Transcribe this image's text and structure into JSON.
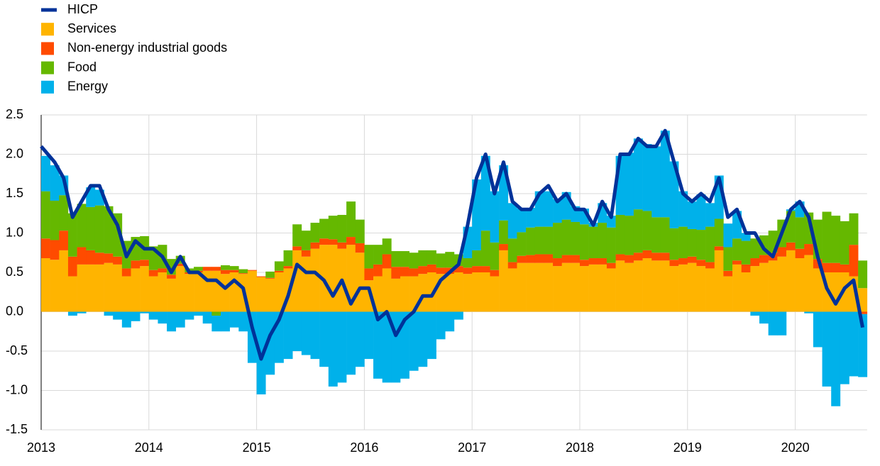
{
  "chart_data": {
    "type": "bar",
    "stacked": true,
    "categories": [
      "2013",
      null,
      null,
      null,
      null,
      null,
      null,
      null,
      null,
      null,
      null,
      null,
      "2014",
      null,
      null,
      null,
      null,
      null,
      null,
      null,
      null,
      null,
      null,
      null,
      "2015",
      null,
      null,
      null,
      null,
      null,
      null,
      null,
      null,
      null,
      null,
      null,
      "2016",
      null,
      null,
      null,
      null,
      null,
      null,
      null,
      null,
      null,
      null,
      null,
      "2017",
      null,
      null,
      null,
      null,
      null,
      null,
      null,
      null,
      null,
      null,
      null,
      "2018",
      null,
      null,
      null,
      null,
      null,
      null,
      null,
      null,
      null,
      null,
      null,
      "2019",
      null,
      null,
      null,
      null,
      null,
      null,
      null,
      null,
      null,
      null,
      null,
      "2020",
      null,
      null,
      null,
      null,
      null,
      null,
      null
    ],
    "ylim": [
      -1.5,
      2.5
    ],
    "yticks": [
      {
        "value": -1.5,
        "label": "-1.5"
      },
      {
        "value": -1,
        "label": "-1.0"
      },
      {
        "value": -0.5,
        "label": "-0.5"
      },
      {
        "value": 0,
        "label": "0.0"
      },
      {
        "value": 0.5,
        "label": "0.5"
      },
      {
        "value": 1,
        "label": "1.0"
      },
      {
        "value": 1.5,
        "label": "1.5"
      },
      {
        "value": 2,
        "label": "2.0"
      },
      {
        "value": 2.5,
        "label": "2.5"
      }
    ],
    "grid": true,
    "series": [
      {
        "name": "HICP",
        "type": "line",
        "color": "#003299",
        "values": [
          2.1,
          1.9,
          1.7,
          1.2,
          1.4,
          1.6,
          1.6,
          1.3,
          1.1,
          0.7,
          0.9,
          0.8,
          0.8,
          0.7,
          0.5,
          0.7,
          0.5,
          0.5,
          0.4,
          0.4,
          0.3,
          0.4,
          0.3,
          -0.2,
          -0.6,
          -0.3,
          -0.1,
          0.2,
          0.6,
          0.5,
          0.5,
          0.4,
          0.2,
          0.4,
          0.1,
          0.3,
          0.3,
          -0.1,
          0.0,
          -0.3,
          -0.1,
          0.0,
          0.2,
          0.2,
          0.4,
          0.5,
          0.6,
          1.1,
          1.7,
          2.0,
          1.5,
          1.9,
          1.4,
          1.3,
          1.3,
          1.5,
          1.6,
          1.4,
          1.5,
          1.3,
          1.3,
          1.1,
          1.4,
          1.2,
          2.0,
          2.0,
          2.2,
          2.1,
          2.1,
          2.3,
          1.9,
          1.5,
          1.4,
          1.5,
          1.4,
          1.7,
          1.2,
          1.3,
          1.0,
          1.0,
          0.8,
          0.7,
          1.0,
          1.3,
          1.4,
          1.2,
          0.7,
          0.3,
          0.1,
          0.3,
          0.4,
          -0.2
        ]
      },
      {
        "name": "Services",
        "type": "bar",
        "color": "#ffb400",
        "values": [
          0.68,
          0.66,
          0.78,
          0.45,
          0.6,
          0.6,
          0.6,
          0.62,
          0.6,
          0.45,
          0.55,
          0.58,
          0.45,
          0.5,
          0.42,
          0.58,
          0.48,
          0.5,
          0.52,
          0.52,
          0.48,
          0.5,
          0.48,
          0.52,
          0.44,
          0.42,
          0.5,
          0.55,
          0.78,
          0.7,
          0.8,
          0.85,
          0.85,
          0.8,
          0.85,
          0.75,
          0.4,
          0.45,
          0.55,
          0.42,
          0.45,
          0.45,
          0.48,
          0.5,
          0.48,
          0.48,
          0.5,
          0.48,
          0.5,
          0.5,
          0.45,
          0.78,
          0.55,
          0.62,
          0.62,
          0.62,
          0.62,
          0.58,
          0.62,
          0.62,
          0.58,
          0.6,
          0.6,
          0.55,
          0.65,
          0.62,
          0.65,
          0.68,
          0.65,
          0.65,
          0.58,
          0.6,
          0.62,
          0.58,
          0.55,
          0.78,
          0.45,
          0.6,
          0.5,
          0.58,
          0.62,
          0.65,
          0.7,
          0.78,
          0.68,
          0.72,
          0.55,
          0.5,
          0.5,
          0.5,
          0.45,
          0.3
        ]
      },
      {
        "name": "Non-energy industrial goods",
        "type": "bar",
        "color": "#ff4b00",
        "values": [
          0.25,
          0.25,
          0.25,
          0.25,
          0.22,
          0.18,
          0.15,
          0.12,
          0.1,
          0.1,
          0.1,
          0.08,
          0.08,
          0.05,
          0.05,
          0.03,
          0.02,
          0.02,
          0.05,
          0.05,
          0.05,
          0.03,
          0.01,
          0.01,
          0.01,
          0.01,
          0.02,
          0.03,
          0.05,
          0.08,
          0.08,
          0.08,
          0.07,
          0.08,
          0.1,
          0.12,
          0.15,
          0.15,
          0.18,
          0.15,
          0.12,
          0.1,
          0.1,
          0.1,
          0.08,
          0.08,
          0.08,
          0.08,
          0.08,
          0.08,
          0.08,
          0.08,
          0.08,
          0.09,
          0.1,
          0.11,
          0.11,
          0.1,
          0.1,
          0.1,
          0.08,
          0.08,
          0.08,
          0.07,
          0.08,
          0.1,
          0.1,
          0.1,
          0.1,
          0.1,
          0.08,
          0.08,
          0.08,
          0.08,
          0.08,
          0.05,
          0.07,
          0.05,
          0.1,
          0.1,
          0.1,
          0.1,
          0.12,
          0.1,
          0.12,
          0.14,
          0.12,
          0.12,
          0.12,
          0.1,
          0.4,
          -0.03
        ]
      },
      {
        "name": "Food",
        "type": "bar",
        "color": "#65b800",
        "values": [
          0.6,
          0.5,
          0.45,
          0.55,
          0.55,
          0.55,
          0.6,
          0.6,
          0.55,
          0.35,
          0.3,
          0.3,
          0.3,
          0.3,
          0.2,
          0.1,
          0.05,
          0.05,
          0.0,
          -0.05,
          0.06,
          0.05,
          0.05,
          0.0,
          0.0,
          0.08,
          0.12,
          0.2,
          0.28,
          0.25,
          0.25,
          0.25,
          0.3,
          0.35,
          0.45,
          0.3,
          0.3,
          0.25,
          0.2,
          0.2,
          0.2,
          0.2,
          0.2,
          0.18,
          0.18,
          0.2,
          0.15,
          0.12,
          0.2,
          0.45,
          0.35,
          0.3,
          0.3,
          0.3,
          0.35,
          0.35,
          0.35,
          0.45,
          0.45,
          0.42,
          0.45,
          0.4,
          0.45,
          0.45,
          0.5,
          0.5,
          0.55,
          0.5,
          0.45,
          0.45,
          0.4,
          0.4,
          0.35,
          0.38,
          0.45,
          0.35,
          0.3,
          0.28,
          0.3,
          0.25,
          0.25,
          0.28,
          0.35,
          0.4,
          0.4,
          0.4,
          0.5,
          0.65,
          0.6,
          0.55,
          0.4,
          0.35
        ]
      },
      {
        "name": "Energy",
        "type": "bar",
        "color": "#00b1ea",
        "values": [
          0.45,
          0.45,
          0.25,
          -0.05,
          -0.02,
          0.25,
          0.2,
          -0.05,
          -0.1,
          -0.2,
          -0.12,
          -0.02,
          -0.1,
          -0.15,
          -0.25,
          -0.2,
          -0.1,
          -0.05,
          -0.15,
          -0.2,
          -0.25,
          -0.2,
          -0.25,
          -0.65,
          -1.05,
          -0.8,
          -0.65,
          -0.6,
          -0.5,
          -0.55,
          -0.6,
          -0.7,
          -0.95,
          -0.9,
          -0.8,
          -0.7,
          -0.6,
          -0.85,
          -0.9,
          -0.9,
          -0.85,
          -0.75,
          -0.7,
          -0.6,
          -0.35,
          -0.25,
          -0.1,
          0.4,
          0.9,
          0.95,
          0.65,
          0.7,
          0.45,
          0.3,
          0.25,
          0.45,
          0.45,
          0.3,
          0.35,
          0.2,
          0.2,
          0.05,
          0.25,
          0.15,
          0.75,
          0.8,
          0.9,
          0.85,
          0.9,
          1.1,
          0.85,
          0.45,
          0.35,
          0.45,
          0.3,
          0.55,
          0.3,
          0.35,
          0.1,
          -0.05,
          -0.15,
          -0.3,
          -0.3,
          0.02,
          0.2,
          -0.02,
          -0.45,
          -0.95,
          -1.2,
          -0.92,
          -0.82,
          -0.8
        ]
      }
    ]
  }
}
